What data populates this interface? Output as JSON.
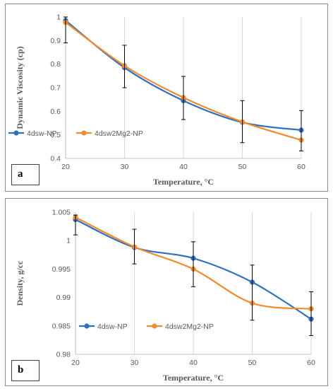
{
  "colors": {
    "series1": "#2f6fbf",
    "series2": "#f28a2e",
    "grid": "#d9d9d9",
    "errorbar": "#000000"
  },
  "panels": [
    {
      "label": "a"
    },
    {
      "label": "b"
    }
  ],
  "chart_data": [
    {
      "type": "line",
      "title": "",
      "xlabel": "Temperature, °C",
      "ylabel": "Dynamic Viscosity (cp)",
      "x": [
        20,
        30,
        40,
        50,
        60
      ],
      "xticks": [
        "20",
        "30",
        "40",
        "50",
        "60"
      ],
      "yticks": [
        "0.4",
        "0.5",
        "0.6",
        "0.7",
        "0.8",
        "0.9",
        "1"
      ],
      "xlim": [
        20,
        60
      ],
      "ylim": [
        0.4,
        1.0
      ],
      "grid": "vertical",
      "legend": "bottom-left",
      "series": [
        {
          "name": "4dsw-NP",
          "values": [
            0.985,
            0.785,
            0.645,
            0.553,
            0.52
          ]
        },
        {
          "name": "4dsw2Mg2-NP",
          "values": [
            0.977,
            0.793,
            0.658,
            0.555,
            0.478
          ]
        }
      ],
      "error_bars": [
        {
          "x": 20,
          "low": 0.89,
          "high": 1.0
        },
        {
          "x": 30,
          "low": 0.7,
          "high": 0.88
        },
        {
          "x": 40,
          "low": 0.565,
          "high": 0.748
        },
        {
          "x": 50,
          "low": 0.467,
          "high": 0.645
        },
        {
          "x": 60,
          "low": 0.432,
          "high": 0.603
        }
      ]
    },
    {
      "type": "line",
      "title": "",
      "xlabel": "Temperature, °C",
      "ylabel": "Density, g/cc",
      "x": [
        20,
        30,
        40,
        50,
        60
      ],
      "xticks": [
        "20",
        "30",
        "40",
        "50",
        "60"
      ],
      "yticks": [
        "0.98",
        "0.985",
        "0.99",
        "0.995",
        "1",
        "1.005"
      ],
      "xlim": [
        20,
        60
      ],
      "ylim": [
        0.98,
        1.005
      ],
      "grid": "vertical",
      "legend": "bottom-left",
      "series": [
        {
          "name": "4dsw-NP",
          "values": [
            1.0037,
            0.9988,
            0.9969,
            0.9927,
            0.9862
          ]
        },
        {
          "name": "4dsw2Mg2-NP",
          "values": [
            1.0041,
            0.9989,
            0.995,
            0.989,
            0.988
          ]
        }
      ],
      "error_bars": [
        {
          "x": 20,
          "low": 1.001,
          "high": 1.0045
        },
        {
          "x": 30,
          "low": 0.9959,
          "high": 1.002
        },
        {
          "x": 40,
          "low": 0.9919,
          "high": 0.9998
        },
        {
          "x": 50,
          "low": 0.986,
          "high": 0.9957
        },
        {
          "x": 60,
          "low": 0.9833,
          "high": 0.991
        }
      ]
    }
  ]
}
